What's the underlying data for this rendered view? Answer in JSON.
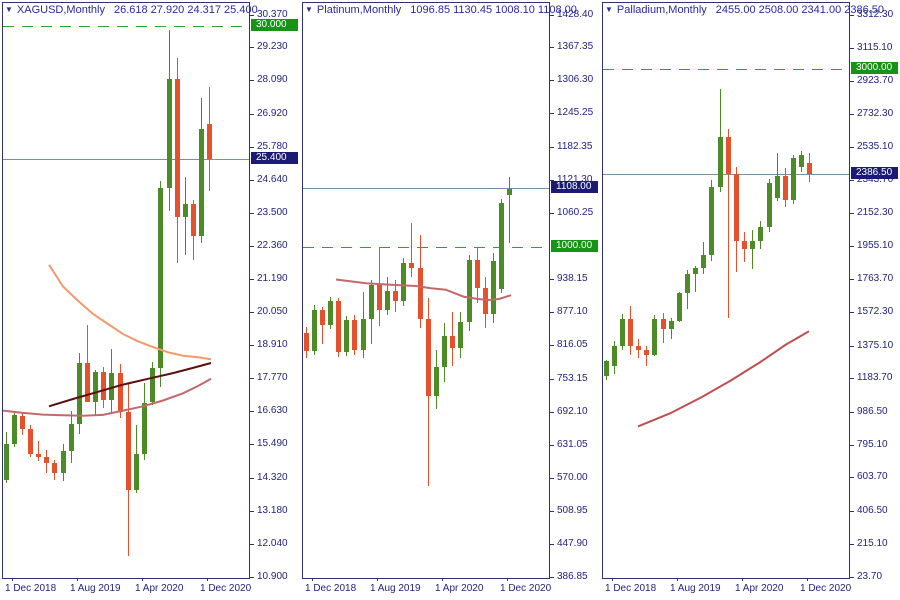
{
  "app": {
    "background": "#ffffff",
    "colors": {
      "bull_body": "#4c8b26",
      "bear_body": "#e5512d",
      "border_navy": "#31317a",
      "axis_text": "#23237e",
      "header_text": "#2a2a9c",
      "dashed_level_green": "#2f9e33",
      "level_badge_green": "#159415",
      "current_badge_navy": "#1b1b75",
      "current_price_line": "#7591a5"
    }
  },
  "panels": [
    {
      "id": "xagusd",
      "title": "XAGUSD,Monthly",
      "ohlc_text": "26.618 27.920 24.317 25.400",
      "axis": {
        "top_value": 30.37,
        "bottom_value": 10.9,
        "labels": [
          "30.370",
          "29.230",
          "28.090",
          "26.920",
          "25.780",
          "24.640",
          "23.500",
          "22.360",
          "21.190",
          "20.050",
          "18.910",
          "17.770",
          "16.630",
          "15.490",
          "14.320",
          "13.180",
          "12.040",
          "10.900"
        ]
      },
      "levels": {
        "dashed": {
          "value": 30.0,
          "label": "30.000"
        },
        "current": {
          "value": 25.4,
          "label": "25.400"
        }
      },
      "x_labels": [
        {
          "text": "1 Dec 2018",
          "tick_x": 10
        },
        {
          "text": "1 Aug 2019",
          "tick_x": 75
        },
        {
          "text": "1 Apr 2020",
          "tick_x": 140
        },
        {
          "text": "1 Dec 2020",
          "tick_x": 205
        }
      ],
      "moving_averages": [
        {
          "name": "ma-slow-salmon",
          "color": "#f29a6e",
          "width": 2,
          "points": [
            [
              46,
              21.75
            ],
            [
              60,
              21.0
            ],
            [
              75,
              20.5
            ],
            [
              90,
              20.05
            ],
            [
              105,
              19.7
            ],
            [
              120,
              19.35
            ],
            [
              135,
              19.1
            ],
            [
              150,
              18.9
            ],
            [
              165,
              18.72
            ],
            [
              180,
              18.6
            ],
            [
              195,
              18.55
            ],
            [
              208,
              18.48
            ]
          ]
        },
        {
          "name": "ma-trend-maroon",
          "color": "#5c0f0f",
          "width": 2,
          "points": [
            [
              46,
              16.85
            ],
            [
              70,
              17.1
            ],
            [
              95,
              17.35
            ],
            [
              120,
              17.6
            ],
            [
              145,
              17.8
            ],
            [
              170,
              18.0
            ],
            [
              190,
              18.18
            ],
            [
              208,
              18.35
            ]
          ]
        },
        {
          "name": "ma-fast-rose",
          "color": "#c4686c",
          "width": 2,
          "points": [
            [
              0,
              16.7
            ],
            [
              20,
              16.62
            ],
            [
              40,
              16.56
            ],
            [
              60,
              16.54
            ],
            [
              80,
              16.52
            ],
            [
              100,
              16.55
            ],
            [
              120,
              16.7
            ],
            [
              140,
              16.85
            ],
            [
              160,
              17.05
            ],
            [
              180,
              17.3
            ],
            [
              195,
              17.55
            ],
            [
              208,
              17.8
            ]
          ]
        }
      ]
    },
    {
      "id": "platinum",
      "title": "Platinum,Monthly",
      "ohlc_text": "1096.85 1130.45 1008.10 1108.00",
      "axis": {
        "top_value": 1428.4,
        "bottom_value": 386.85,
        "labels": [
          "1428.40",
          "1367.35",
          "1306.30",
          "1245.25",
          "1182.35",
          "1121.30",
          "1060.25",
          "938.15",
          "877.10",
          "816.05",
          "753.15",
          "692.10",
          "631.05",
          "570.00",
          "508.95",
          "447.90",
          "386.85"
        ]
      },
      "levels": {
        "dashed": {
          "value": 1000.0,
          "label": "1000.00"
        },
        "current": {
          "value": 1108.0,
          "label": "1108.00"
        }
      },
      "x_labels": [
        {
          "text": "1 Dec 2018",
          "tick_x": 10
        },
        {
          "text": "1 Aug 2019",
          "tick_x": 75
        },
        {
          "text": "1 Apr 2020",
          "tick_x": 140
        },
        {
          "text": "1 Dec 2020",
          "tick_x": 205
        }
      ],
      "moving_averages": [
        {
          "name": "ma-rose",
          "color": "#c4686c",
          "width": 2,
          "points": [
            [
              33,
              940
            ],
            [
              63,
              933
            ],
            [
              90,
              930
            ],
            [
              113,
              928
            ],
            [
              128,
              924
            ],
            [
              143,
              921
            ],
            [
              161,
              908
            ],
            [
              175,
              904
            ],
            [
              186,
              902
            ],
            [
              196,
              904
            ],
            [
              208,
              911
            ]
          ]
        }
      ]
    },
    {
      "id": "palladium",
      "title": "Palladium,Monthly",
      "ohlc_text": "2455.00 2508.00 2341.00 2386.50",
      "axis": {
        "top_value": 3312.3,
        "bottom_value": 23.7,
        "labels": [
          "3312.30",
          "3115.10",
          "2923.70",
          "2732.30",
          "2535.10",
          "2343.70",
          "2152.30",
          "1955.10",
          "1763.70",
          "1572.30",
          "1375.10",
          "1183.70",
          "986.50",
          "795.10",
          "603.70",
          "406.50",
          "215.10",
          "23.70"
        ]
      },
      "levels": {
        "dashed": {
          "value": 3000.0,
          "label": "3000.00"
        },
        "current": {
          "value": 2386.5,
          "label": "2386.50"
        }
      },
      "x_labels": [
        {
          "text": "1 Dec 2018",
          "tick_x": 10
        },
        {
          "text": "1 Aug 2019",
          "tick_x": 75
        },
        {
          "text": "1 Apr 2020",
          "tick_x": 140
        },
        {
          "text": "1 Dec 2020",
          "tick_x": 205
        }
      ],
      "moving_averages": [
        {
          "name": "ma-red",
          "color": "#bf4f4f",
          "width": 2,
          "points": [
            [
              35,
              911
            ],
            [
              68,
              990
            ],
            [
              98,
              1080
            ],
            [
              128,
              1180
            ],
            [
              158,
              1290
            ],
            [
              183,
              1390
            ],
            [
              206,
              1467
            ]
          ]
        }
      ]
    }
  ],
  "chart_data": [
    {
      "type": "candlestick",
      "symbol": "XAGUSD",
      "timeframe": "Monthly",
      "title": "XAGUSD,Monthly",
      "legend_position": "top-left",
      "grid": false,
      "ylim": [
        10.9,
        30.37
      ],
      "x0": 3,
      "spacing": 8.15,
      "body_width": 5,
      "months": [
        "Dec 2018",
        "Jan 2019",
        "Feb 2019",
        "Mar 2019",
        "Apr 2019",
        "May 2019",
        "Jun 2019",
        "Jul 2019",
        "Aug 2019",
        "Sep 2019",
        "Oct 2019",
        "Nov 2019",
        "Dec 2019",
        "Jan 2020",
        "Feb 2020",
        "Mar 2020",
        "Apr 2020",
        "May 2020",
        "Jun 2020",
        "Jul 2020",
        "Aug 2020",
        "Sep 2020",
        "Oct 2020",
        "Nov 2020",
        "Dec 2020",
        "Jan 2021"
      ],
      "open": [
        14.3,
        15.55,
        16.5,
        16.06,
        15.2,
        15.1,
        14.9,
        14.55,
        15.3,
        16.25,
        18.35,
        17.0,
        18.05,
        17.05,
        18.0,
        16.65,
        13.95,
        15.2,
        16.98,
        18.17,
        24.4,
        28.2,
        23.42,
        23.87,
        22.75,
        26.618
      ],
      "high": [
        15.95,
        16.65,
        16.6,
        16.2,
        15.65,
        15.35,
        15.0,
        15.55,
        16.7,
        18.7,
        19.65,
        18.1,
        18.2,
        18.85,
        18.3,
        17.65,
        16.2,
        17.65,
        18.4,
        24.67,
        29.9,
        28.93,
        24.8,
        24.0,
        27.54,
        27.92
      ],
      "low": [
        14.2,
        15.45,
        15.85,
        15.1,
        14.95,
        14.55,
        14.3,
        14.25,
        14.9,
        15.9,
        17.45,
        16.55,
        16.8,
        16.6,
        16.45,
        11.65,
        13.85,
        15.0,
        16.9,
        17.5,
        23.6,
        21.83,
        22.1,
        21.9,
        22.5,
        24.317
      ],
      "close": [
        15.55,
        16.55,
        16.06,
        15.2,
        15.1,
        14.9,
        14.55,
        15.3,
        16.25,
        18.35,
        17.0,
        18.05,
        17.05,
        18.0,
        16.65,
        13.95,
        15.2,
        16.98,
        18.17,
        24.4,
        28.2,
        23.42,
        23.87,
        22.75,
        26.47,
        25.4
      ],
      "levels": {
        "horizontal_dashed": 30.0,
        "current_price": 25.4
      }
    },
    {
      "type": "candlestick",
      "symbol": "Platinum",
      "timeframe": "Monthly",
      "title": "Platinum,Monthly",
      "legend_position": "top-left",
      "grid": false,
      "ylim": [
        386.85,
        1428.4
      ],
      "x0": 3,
      "spacing": 8.15,
      "body_width": 5,
      "months": [
        "Dec 2018",
        "Jan 2019",
        "Feb 2019",
        "Mar 2019",
        "Apr 2019",
        "May 2019",
        "Jun 2019",
        "Jul 2019",
        "Aug 2019",
        "Sep 2019",
        "Oct 2019",
        "Nov 2019",
        "Dec 2019",
        "Jan 2020",
        "Feb 2020",
        "Mar 2020",
        "Apr 2020",
        "May 2020",
        "Jun 2020",
        "Jul 2020",
        "Aug 2020",
        "Sep 2020",
        "Oct 2020",
        "Nov 2020",
        "Dec 2020",
        "Jan 2021"
      ],
      "open": [
        840,
        808,
        883,
        856,
        901,
        805,
        865,
        810,
        867,
        930,
        884,
        918,
        900,
        971,
        962,
        866,
        725,
        777,
        835,
        814,
        861,
        977,
        924,
        877,
        923,
        1096.85
      ],
      "high": [
        852,
        892,
        889,
        908,
        905,
        872,
        875,
        917,
        940,
        999,
        945,
        940,
        980,
        1044,
        1023,
        905,
        810,
        860,
        880,
        880,
        985,
        1000,
        945,
        990,
        1090,
        1130.45
      ],
      "low": [
        795,
        800,
        820,
        848,
        796,
        798,
        800,
        795,
        820,
        853,
        875,
        880,
        890,
        945,
        850,
        558,
        700,
        750,
        780,
        795,
        845,
        897,
        850,
        860,
        915,
        1008.1
      ],
      "close": [
        808,
        883,
        856,
        901,
        805,
        865,
        810,
        867,
        930,
        884,
        918,
        900,
        971,
        962,
        866,
        725,
        777,
        835,
        814,
        861,
        977,
        924,
        877,
        975,
        1081,
        1108.0
      ],
      "levels": {
        "horizontal_dashed": 1000.0,
        "current_price": 1108.0
      }
    },
    {
      "type": "candlestick",
      "symbol": "Palladium",
      "timeframe": "Monthly",
      "title": "Palladium,Monthly",
      "legend_position": "top-left",
      "grid": false,
      "ylim": [
        23.7,
        3312.3
      ],
      "x0": 3,
      "spacing": 8.15,
      "body_width": 5,
      "months": [
        "Dec 2018",
        "Jan 2019",
        "Feb 2019",
        "Mar 2019",
        "Apr 2019",
        "May 2019",
        "Jun 2019",
        "Jul 2019",
        "Aug 2019",
        "Sep 2019",
        "Oct 2019",
        "Nov 2019",
        "Dec 2019",
        "Jan 2020",
        "Feb 2020",
        "Mar 2020",
        "Apr 2020",
        "May 2020",
        "Jun 2020",
        "Jul 2020",
        "Aug 2020",
        "Sep 2020",
        "Oct 2020",
        "Nov 2020",
        "Dec 2020",
        "Jan 2021"
      ],
      "open": [
        1206,
        1264,
        1381,
        1540,
        1380,
        1355,
        1330,
        1540,
        1480,
        1530,
        1690,
        1800,
        1840,
        1912,
        2310,
        2605,
        2386,
        1994,
        1948,
        1994,
        2080,
        2250,
        2377,
        2233,
        2430,
        2455.0
      ],
      "high": [
        1300,
        1410,
        1570,
        1614,
        1420,
        1380,
        1560,
        1575,
        1545,
        1700,
        1825,
        1850,
        1990,
        2350,
        2883,
        2650,
        2430,
        2051,
        2060,
        2110,
        2360,
        2510,
        2423,
        2500,
        2520,
        2508.0
      ],
      "low": [
        1180,
        1217,
        1360,
        1330,
        1310,
        1263,
        1320,
        1400,
        1420,
        1520,
        1600,
        1700,
        1800,
        1880,
        2280,
        1546,
        1813,
        1872,
        1834,
        1950,
        2050,
        2230,
        2195,
        2210,
        2400,
        2341.0
      ],
      "close": [
        1293,
        1381,
        1540,
        1380,
        1355,
        1330,
        1540,
        1480,
        1530,
        1690,
        1800,
        1840,
        1912,
        2310,
        2605,
        2386,
        1994,
        1948,
        1994,
        2080,
        2338,
        2377,
        2233,
        2481,
        2500,
        2386.5
      ],
      "levels": {
        "horizontal_dashed": 3000.0,
        "current_price": 2386.5
      }
    }
  ]
}
